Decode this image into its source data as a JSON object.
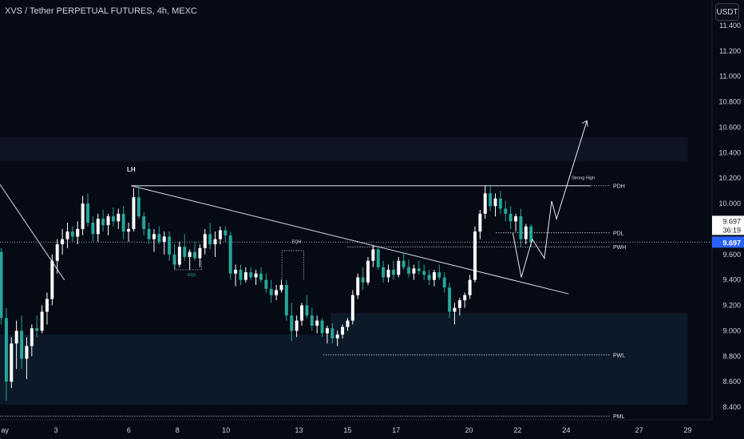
{
  "header": {
    "title": "XVS / Tether PERPETUAL FUTURES, 4h, MEXC"
  },
  "price_axis": {
    "currency_button": "USDT"
  },
  "colors": {
    "background": "#060a14",
    "up": "#ffffff",
    "down": "#26a69a",
    "last_price_badge": "#2962ff",
    "text": "#d1d4dc",
    "zone": "#0d1b2a",
    "zone_dark": "#0e1422"
  },
  "chart_data": {
    "type": "candlestick",
    "ylim": [
      8.3,
      11.6
    ],
    "y_ticks": [
      "11.400",
      "11.200",
      "11.000",
      "10.800",
      "10.600",
      "10.400",
      "10.200",
      "10.000",
      "9.800",
      "9.600",
      "9.400",
      "9.200",
      "9.000",
      "8.800",
      "8.600",
      "8.400"
    ],
    "x_ticks": [
      "ay",
      "3",
      "6",
      "8",
      "10",
      "13",
      "15",
      "17",
      "20",
      "22",
      "24",
      "27",
      "29"
    ],
    "x_tick_days": [
      0.9,
      3,
      6,
      8,
      10,
      13,
      15,
      17,
      20,
      22,
      24,
      27,
      29
    ],
    "day_range": [
      0.7,
      30.0
    ],
    "last_price": {
      "price": "9.697",
      "countdown": "36:19",
      "value": 9.697
    },
    "levels": [
      {
        "label": "PDH",
        "value": 10.14,
        "from_day": 6.1
      },
      {
        "label": "PDL",
        "value": 9.77,
        "from_day": 21.1
      },
      {
        "label": "PWH",
        "value": 9.66,
        "from_day": 15.0
      },
      {
        "label": "PWL",
        "value": 8.81,
        "from_day": 14.0
      },
      {
        "label": "PML",
        "value": 8.33,
        "from_day": 0.7
      }
    ],
    "annotations": [
      {
        "text": "LH",
        "day": 6.1,
        "value": 10.25
      },
      {
        "text": "Strong High",
        "day": 24.7,
        "value": 10.19
      },
      {
        "text": "EQL",
        "day": 8.6,
        "value": 9.43
      },
      {
        "text": "EQH",
        "day": 12.9,
        "value": 9.69
      }
    ],
    "zones": [
      {
        "day_from": 0.7,
        "day_to": 29.0,
        "low": 10.33,
        "high": 10.52,
        "style": "dark"
      },
      {
        "day_from": 14.3,
        "day_to": 29.0,
        "low": 8.97,
        "high": 9.14,
        "style": "teal"
      },
      {
        "day_from": 0.7,
        "day_to": 29.0,
        "low": 8.42,
        "high": 8.97,
        "style": "teal"
      }
    ],
    "trendlines": [
      {
        "from": [
          0.7,
          10.15
        ],
        "to": [
          3.35,
          9.4
        ]
      },
      {
        "from": [
          6.1,
          10.14
        ],
        "to": [
          24.1,
          9.29
        ]
      },
      {
        "from": [
          6.1,
          10.14
        ],
        "to": [
          25.0,
          10.14
        ]
      }
    ],
    "projection": [
      [
        21.8,
        9.77
      ],
      [
        22.15,
        9.42
      ],
      [
        22.6,
        9.72
      ],
      [
        23.1,
        9.57
      ],
      [
        23.4,
        10.02
      ],
      [
        23.6,
        9.88
      ],
      [
        24.85,
        10.65
      ]
    ],
    "candles": [
      [
        9.62,
        9.65,
        9.05,
        9.1
      ],
      [
        9.1,
        9.18,
        8.45,
        8.6
      ],
      [
        8.6,
        8.95,
        8.55,
        8.9
      ],
      [
        8.9,
        9.08,
        8.7,
        9.0
      ],
      [
        9.0,
        9.12,
        8.7,
        8.78
      ],
      [
        8.78,
        8.95,
        8.62,
        8.88
      ],
      [
        8.88,
        9.05,
        8.8,
        9.02
      ],
      [
        9.02,
        9.12,
        8.95,
        9.0
      ],
      [
        9.0,
        9.2,
        8.98,
        9.15
      ],
      [
        9.15,
        9.3,
        9.05,
        9.25
      ],
      [
        9.25,
        9.6,
        9.2,
        9.55
      ],
      [
        9.55,
        9.72,
        9.45,
        9.68
      ],
      [
        9.68,
        9.8,
        9.6,
        9.72
      ],
      [
        9.72,
        9.85,
        9.65,
        9.78
      ],
      [
        9.78,
        9.82,
        9.7,
        9.74
      ],
      [
        9.74,
        9.86,
        9.68,
        9.8
      ],
      [
        9.8,
        10.06,
        9.75,
        10.0
      ],
      [
        10.0,
        10.08,
        9.82,
        9.85
      ],
      [
        9.85,
        9.9,
        9.7,
        9.76
      ],
      [
        9.76,
        9.92,
        9.7,
        9.88
      ],
      [
        9.88,
        9.95,
        9.78,
        9.83
      ],
      [
        9.83,
        9.92,
        9.75,
        9.9
      ],
      [
        9.9,
        9.97,
        9.82,
        9.86
      ],
      [
        9.86,
        9.96,
        9.8,
        9.92
      ],
      [
        9.92,
        9.98,
        9.72,
        9.78
      ],
      [
        9.78,
        9.85,
        9.7,
        9.8
      ],
      [
        9.8,
        10.12,
        9.78,
        10.05
      ],
      [
        10.05,
        10.14,
        9.88,
        9.9
      ],
      [
        9.9,
        9.93,
        9.75,
        9.8
      ],
      [
        9.8,
        9.85,
        9.68,
        9.72
      ],
      [
        9.72,
        9.8,
        9.62,
        9.76
      ],
      [
        9.76,
        9.82,
        9.68,
        9.7
      ],
      [
        9.7,
        9.78,
        9.6,
        9.74
      ],
      [
        9.74,
        9.78,
        9.55,
        9.6
      ],
      [
        9.6,
        9.68,
        9.48,
        9.52
      ],
      [
        9.52,
        9.7,
        9.5,
        9.66
      ],
      [
        9.66,
        9.76,
        9.55,
        9.58
      ],
      [
        9.58,
        9.64,
        9.48,
        9.62
      ],
      [
        9.62,
        9.7,
        9.55,
        9.57
      ],
      [
        9.57,
        9.68,
        9.5,
        9.65
      ],
      [
        9.65,
        9.8,
        9.6,
        9.76
      ],
      [
        9.76,
        9.85,
        9.64,
        9.68
      ],
      [
        9.68,
        9.78,
        9.58,
        9.72
      ],
      [
        9.72,
        9.82,
        9.68,
        9.79
      ],
      [
        9.79,
        9.82,
        9.7,
        9.75
      ],
      [
        9.75,
        9.78,
        9.4,
        9.45
      ],
      [
        9.45,
        9.52,
        9.35,
        9.48
      ],
      [
        9.48,
        9.52,
        9.36,
        9.4
      ],
      [
        9.4,
        9.5,
        9.38,
        9.46
      ],
      [
        9.46,
        9.5,
        9.4,
        9.42
      ],
      [
        9.42,
        9.48,
        9.36,
        9.45
      ],
      [
        9.45,
        9.5,
        9.38,
        9.4
      ],
      [
        9.4,
        9.45,
        9.3,
        9.33
      ],
      [
        9.33,
        9.4,
        9.22,
        9.28
      ],
      [
        9.28,
        9.36,
        9.24,
        9.32
      ],
      [
        9.32,
        9.4,
        9.3,
        9.36
      ],
      [
        9.36,
        9.4,
        9.08,
        9.12
      ],
      [
        9.12,
        9.22,
        8.92,
        9.0
      ],
      [
        9.0,
        9.12,
        8.95,
        9.08
      ],
      [
        9.08,
        9.22,
        9.04,
        9.2
      ],
      [
        9.2,
        9.28,
        9.1,
        9.12
      ],
      [
        9.12,
        9.18,
        9.0,
        9.04
      ],
      [
        9.04,
        9.12,
        8.98,
        9.08
      ],
      [
        9.08,
        9.1,
        8.95,
        8.98
      ],
      [
        8.98,
        9.04,
        8.9,
        9.02
      ],
      [
        9.02,
        9.06,
        8.9,
        8.94
      ],
      [
        8.94,
        9.0,
        8.88,
        8.97
      ],
      [
        8.97,
        9.05,
        8.94,
        9.03
      ],
      [
        9.03,
        9.1,
        9.0,
        9.08
      ],
      [
        9.08,
        9.32,
        9.05,
        9.28
      ],
      [
        9.28,
        9.45,
        9.25,
        9.42
      ],
      [
        9.42,
        9.5,
        9.32,
        9.38
      ],
      [
        9.38,
        9.58,
        9.36,
        9.55
      ],
      [
        9.55,
        9.67,
        9.5,
        9.64
      ],
      [
        9.64,
        9.66,
        9.48,
        9.5
      ],
      [
        9.5,
        9.55,
        9.38,
        9.42
      ],
      [
        9.42,
        9.52,
        9.38,
        9.48
      ],
      [
        9.48,
        9.55,
        9.4,
        9.44
      ],
      [
        9.44,
        9.58,
        9.42,
        9.55
      ],
      [
        9.55,
        9.62,
        9.48,
        9.5
      ],
      [
        9.5,
        9.56,
        9.42,
        9.45
      ],
      [
        9.45,
        9.52,
        9.4,
        9.49
      ],
      [
        9.49,
        9.55,
        9.44,
        9.47
      ],
      [
        9.47,
        9.52,
        9.4,
        9.44
      ],
      [
        9.44,
        9.48,
        9.36,
        9.4
      ],
      [
        9.4,
        9.48,
        9.35,
        9.46
      ],
      [
        9.46,
        9.52,
        9.4,
        9.42
      ],
      [
        9.42,
        9.46,
        9.3,
        9.34
      ],
      [
        9.34,
        9.38,
        9.1,
        9.15
      ],
      [
        9.15,
        9.22,
        9.05,
        9.18
      ],
      [
        9.18,
        9.26,
        9.12,
        9.24
      ],
      [
        9.24,
        9.3,
        9.18,
        9.28
      ],
      [
        9.28,
        9.44,
        9.25,
        9.4
      ],
      [
        9.4,
        9.82,
        9.38,
        9.78
      ],
      [
        9.78,
        9.95,
        9.72,
        9.92
      ],
      [
        9.92,
        10.14,
        9.88,
        10.08
      ],
      [
        10.08,
        10.14,
        9.94,
        9.98
      ],
      [
        9.98,
        10.08,
        9.9,
        10.04
      ],
      [
        10.04,
        10.1,
        9.92,
        9.96
      ],
      [
        9.96,
        10.02,
        9.86,
        9.92
      ],
      [
        9.92,
        9.98,
        9.8,
        9.86
      ],
      [
        9.86,
        9.92,
        9.78,
        9.9
      ],
      [
        9.9,
        9.96,
        9.66,
        9.72
      ],
      [
        9.72,
        9.84,
        9.68,
        9.82
      ],
      [
        9.82,
        9.84,
        9.66,
        9.697
      ]
    ]
  }
}
